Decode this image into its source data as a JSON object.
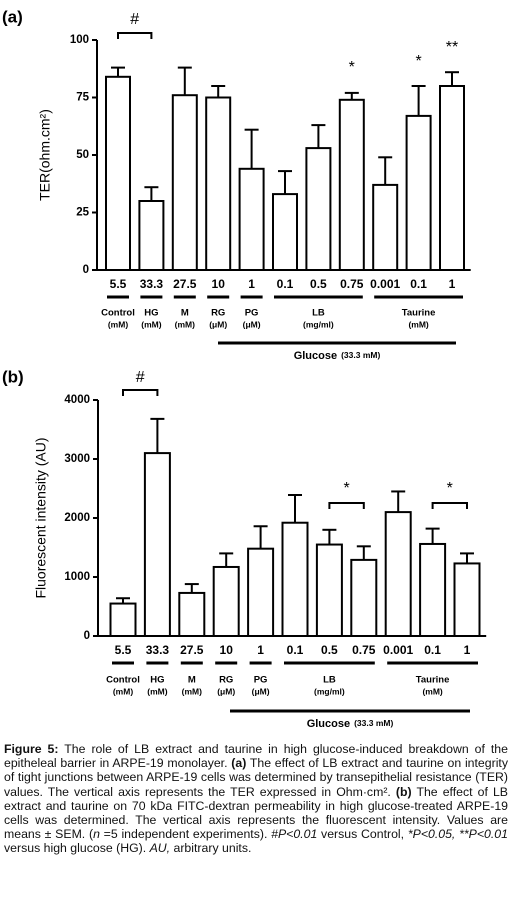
{
  "chart_data": [
    {
      "type": "bar",
      "label": "(a)",
      "y_label": "TER(ohm.cm²)",
      "categories": [
        "5.5",
        "33.3",
        "27.5",
        "10",
        "1",
        "0.1",
        "0.5",
        "0.75",
        "0.001",
        "0.1",
        "1"
      ],
      "series": [
        {
          "name": "TER",
          "color": "#ffffff",
          "values": [
            84,
            30,
            76,
            75,
            44,
            33,
            53,
            74,
            37,
            67,
            80
          ],
          "errors": [
            4,
            6,
            12,
            5,
            17,
            10,
            10,
            3,
            12,
            13,
            6
          ]
        }
      ],
      "groups": [
        {
          "name": "Control",
          "unit": "(mM)"
        },
        {
          "name": "HG",
          "unit": "(mM)"
        },
        {
          "name": "M",
          "unit": "(mM)"
        },
        {
          "name": "RG",
          "unit": "(μM)"
        },
        {
          "name": "PG",
          "unit": "(μM)"
        },
        {
          "name": "LB",
          "unit": "(mg/ml)"
        },
        {
          "name": "Taurine",
          "unit": "(mM)"
        }
      ],
      "glucose_label": {
        "name": "Glucose",
        "unit": "(33.3 mM)"
      },
      "annotations": [
        "#",
        "*",
        "*",
        "**"
      ],
      "ylim": [
        0,
        100
      ],
      "yticks": [
        0,
        25,
        50,
        75,
        100
      ]
    },
    {
      "type": "bar",
      "label": "(b)",
      "y_label": "Fluorescent intensity (AU)",
      "categories": [
        "5.5",
        "33.3",
        "27.5",
        "10",
        "1",
        "0.1",
        "0.5",
        "0.75",
        "0.001",
        "0.1",
        "1"
      ],
      "series": [
        {
          "name": "Fluorescent intensity",
          "color": "#ffffff",
          "values": [
            550,
            3100,
            730,
            1170,
            1480,
            1920,
            1550,
            1290,
            2100,
            1560,
            1230
          ],
          "errors": [
            90,
            580,
            150,
            230,
            380,
            470,
            250,
            230,
            350,
            260,
            170
          ]
        }
      ],
      "groups": [
        {
          "name": "Control",
          "unit": "(mM)"
        },
        {
          "name": "HG",
          "unit": "(mM)"
        },
        {
          "name": "M",
          "unit": "(mM)"
        },
        {
          "name": "RG",
          "unit": "(μM)"
        },
        {
          "name": "PG",
          "unit": "(μM)"
        },
        {
          "name": "LB",
          "unit": "(mg/ml)"
        },
        {
          "name": "Taurine",
          "unit": "(mM)"
        }
      ],
      "glucose_label": {
        "name": "Glucose",
        "unit": "(33.3 mM)"
      },
      "annotations": [
        "#",
        "*",
        "*"
      ],
      "ylim": [
        0,
        4000
      ],
      "yticks": [
        0,
        1000,
        2000,
        3000,
        4000
      ]
    }
  ],
  "caption": {
    "runs": [
      {
        "text": "Figure 5:",
        "style": "bold"
      },
      {
        "text": " The role of LB extract and taurine in high glucose-induced breakdown of the epitheleal barrier in ARPE-19 monolayer. ",
        "style": "normal"
      },
      {
        "text": "(a)",
        "style": "bold"
      },
      {
        "text": " The effect of LB extract and taurine on integrity of tight junctions between ARPE-19 cells was determined by transepithelial resistance (TER) values. The vertical axis represents the TER expressed in Ohm·cm². ",
        "style": "normal"
      },
      {
        "text": "(b)",
        "style": "bold"
      },
      {
        "text": " The effect of LB extract and taurine on 70 kDa FITC-dextran permeability in high glucose-treated ARPE-19 cells was determined. The vertical axis represents the fluorescent intensity. Values are means ± SEM. (",
        "style": "normal"
      },
      {
        "text": "n",
        "style": "italic"
      },
      {
        "text": " =5 independent experiments). ",
        "style": "normal"
      },
      {
        "text": "#P<0.01",
        "style": "italic"
      },
      {
        "text": " versus Control, ",
        "style": "normal"
      },
      {
        "text": "*P<0.05, **P<0.01",
        "style": "italic"
      },
      {
        "text": " versus high glucose (HG). ",
        "style": "normal"
      },
      {
        "text": "AU,",
        "style": "italic"
      },
      {
        "text": " arbitrary units.",
        "style": "normal"
      }
    ]
  }
}
